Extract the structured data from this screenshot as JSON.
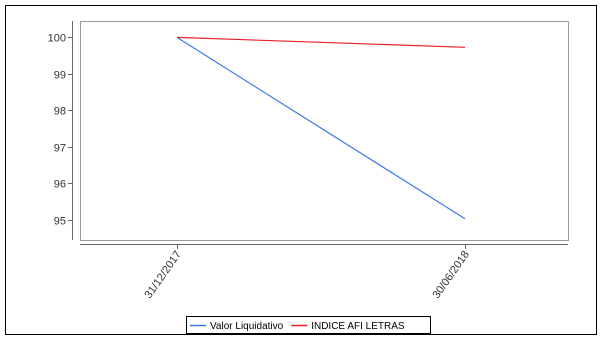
{
  "chart_data": {
    "type": "line",
    "title": "",
    "xlabel": "",
    "ylabel": "",
    "x": [
      "31/12/2017",
      "30/06/2018"
    ],
    "ylim": [
      94.45,
      100.45
    ],
    "yticks": [
      95,
      96,
      97,
      98,
      99,
      100
    ],
    "grid": false,
    "legend_position": "bottom",
    "series": [
      {
        "name": "Valor Liquidativo",
        "color": "#3d7be8",
        "values": [
          100,
          95.03
        ]
      },
      {
        "name": "INDICE AFI LETRAS",
        "color": "#e8202a",
        "values": [
          100,
          99.73
        ]
      }
    ]
  }
}
